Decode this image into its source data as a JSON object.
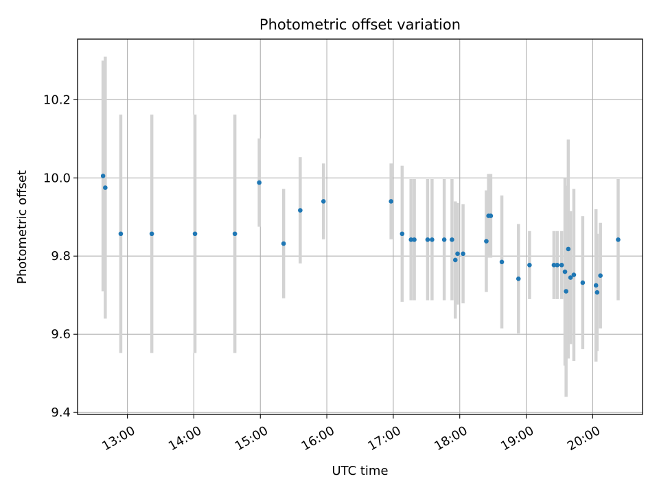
{
  "chart_data": {
    "type": "scatter",
    "title": "Photometric offset variation",
    "xlabel": "UTC time",
    "ylabel": "Photometric offset",
    "xlim": [
      "12:15",
      "20:45"
    ],
    "ylim": [
      9.395,
      10.355
    ],
    "grid": true,
    "x_ticks": [
      "13:00",
      "14:00",
      "15:00",
      "16:00",
      "17:00",
      "18:00",
      "19:00",
      "20:00"
    ],
    "y_ticks": [
      9.4,
      9.6,
      9.8,
      10.0,
      10.2
    ],
    "colors": {
      "point": "#1f77b4",
      "errorbar": "#d3d3d3",
      "grid": "#b0b0b0",
      "frame": "#000000"
    },
    "points": [
      {
        "x": "12:38",
        "y": 10.005,
        "err": 0.295
      },
      {
        "x": "12:40",
        "y": 9.975,
        "err": 0.335
      },
      {
        "x": "12:54",
        "y": 9.857,
        "err": 0.305
      },
      {
        "x": "13:22",
        "y": 9.857,
        "err": 0.305
      },
      {
        "x": "14:01",
        "y": 9.857,
        "err": 0.305
      },
      {
        "x": "14:37",
        "y": 9.857,
        "err": 0.305
      },
      {
        "x": "14:59",
        "y": 9.988,
        "err": 0.113
      },
      {
        "x": "15:21",
        "y": 9.832,
        "err": 0.14
      },
      {
        "x": "15:36",
        "y": 9.917,
        "err": 0.136
      },
      {
        "x": "15:57",
        "y": 9.94,
        "err": 0.097
      },
      {
        "x": "16:58",
        "y": 9.94,
        "err": 0.097
      },
      {
        "x": "17:08",
        "y": 9.857,
        "err": 0.174
      },
      {
        "x": "17:16",
        "y": 9.842,
        "err": 0.155
      },
      {
        "x": "17:19",
        "y": 9.842,
        "err": 0.155
      },
      {
        "x": "17:31",
        "y": 9.842,
        "err": 0.155
      },
      {
        "x": "17:35",
        "y": 9.842,
        "err": 0.155
      },
      {
        "x": "17:46",
        "y": 9.842,
        "err": 0.155
      },
      {
        "x": "17:53",
        "y": 9.842,
        "err": 0.155
      },
      {
        "x": "17:56",
        "y": 9.79,
        "err": 0.15
      },
      {
        "x": "17:58",
        "y": 9.806,
        "err": 0.13
      },
      {
        "x": "18:03",
        "y": 9.806,
        "err": 0.127
      },
      {
        "x": "18:24",
        "y": 9.838,
        "err": 0.13
      },
      {
        "x": "18:26",
        "y": 9.903,
        "err": 0.107
      },
      {
        "x": "18:28",
        "y": 9.903,
        "err": 0.107
      },
      {
        "x": "18:38",
        "y": 9.785,
        "err": 0.17
      },
      {
        "x": "18:53",
        "y": 9.742,
        "err": 0.14
      },
      {
        "x": "19:03",
        "y": 9.777,
        "err": 0.087
      },
      {
        "x": "19:25",
        "y": 9.777,
        "err": 0.087
      },
      {
        "x": "19:28",
        "y": 9.777,
        "err": 0.087
      },
      {
        "x": "19:32",
        "y": 9.777,
        "err": 0.087
      },
      {
        "x": "19:35",
        "y": 9.76,
        "err": 0.24
      },
      {
        "x": "19:36",
        "y": 9.71,
        "err": 0.27
      },
      {
        "x": "19:38",
        "y": 9.818,
        "err": 0.28
      },
      {
        "x": "19:40",
        "y": 9.745,
        "err": 0.17
      },
      {
        "x": "19:43",
        "y": 9.752,
        "err": 0.22
      },
      {
        "x": "19:51",
        "y": 9.732,
        "err": 0.17
      },
      {
        "x": "20:03",
        "y": 9.725,
        "err": 0.195
      },
      {
        "x": "20:04",
        "y": 9.707,
        "err": 0.15
      },
      {
        "x": "20:07",
        "y": 9.75,
        "err": 0.135
      },
      {
        "x": "20:23",
        "y": 9.842,
        "err": 0.155
      }
    ]
  }
}
